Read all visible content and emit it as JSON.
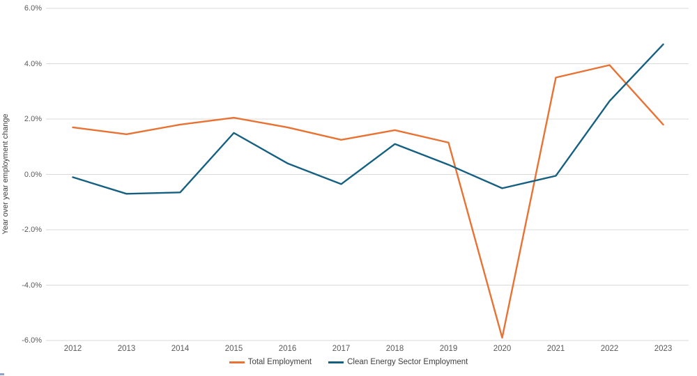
{
  "chart_data": {
    "type": "line",
    "title": "",
    "xlabel": "",
    "ylabel": "Year over year employment change",
    "categories": [
      "2012",
      "2013",
      "2014",
      "2015",
      "2016",
      "2017",
      "2018",
      "2019",
      "2020",
      "2021",
      "2022",
      "2023"
    ],
    "series": [
      {
        "name": "Total Employment",
        "color": "#E97132",
        "values": [
          1.7,
          1.45,
          1.8,
          2.05,
          1.7,
          1.25,
          1.6,
          1.15,
          -5.9,
          3.5,
          3.95,
          1.8
        ]
      },
      {
        "name": "Clean Energy Sector Employment",
        "color": "#156082",
        "values": [
          -0.1,
          -0.7,
          -0.65,
          1.5,
          0.4,
          -0.35,
          1.1,
          0.35,
          -0.5,
          -0.05,
          2.65,
          4.7
        ]
      }
    ],
    "y_ticks": [
      {
        "label": "6.0%",
        "value": 6
      },
      {
        "label": "4.0%",
        "value": 4
      },
      {
        "label": "2.0%",
        "value": 2
      },
      {
        "label": "0.0%",
        "value": 0
      },
      {
        "label": "-2.0%",
        "value": -2
      },
      {
        "label": "-4.0%",
        "value": -4
      },
      {
        "label": "-6.0%",
        "value": -6
      }
    ],
    "ylim": [
      -6,
      6
    ],
    "grid": true,
    "legend_position": "bottom"
  },
  "colors": {
    "background": "#ffffff",
    "gridline": "#D9D9D9",
    "tick_text": "#595959",
    "axis_title_text": "#404040",
    "legend_text": "#404040",
    "series_total_employment": "#E97132",
    "series_clean_energy": "#156082"
  }
}
